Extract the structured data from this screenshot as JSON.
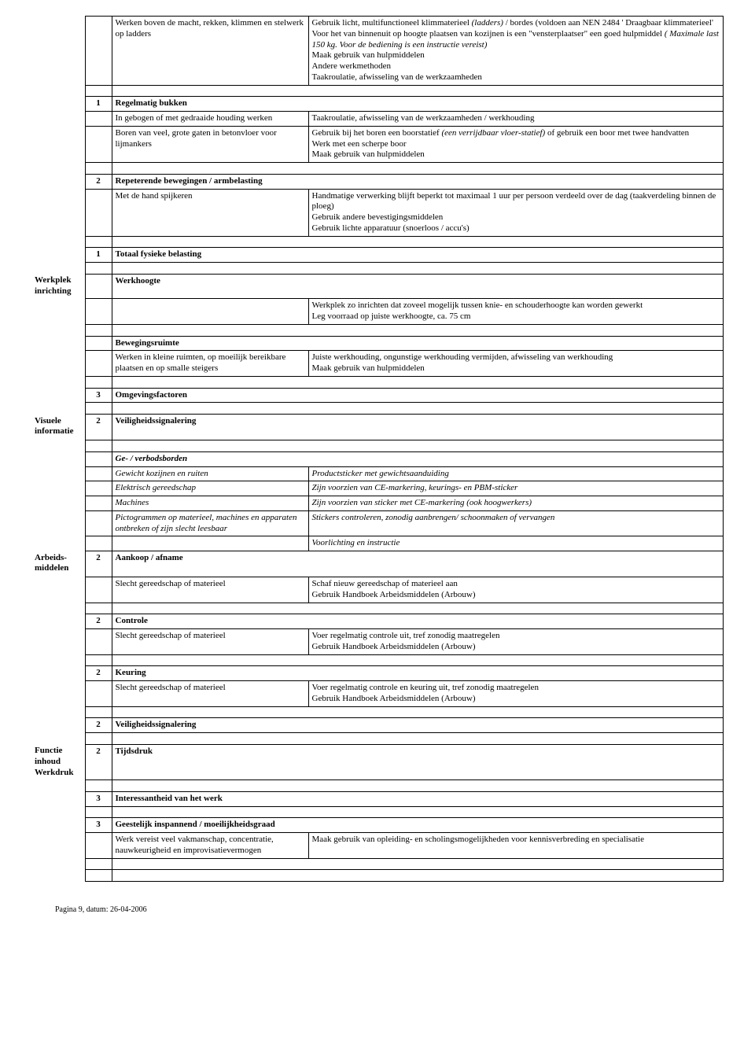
{
  "rows": [
    {
      "cat": "",
      "num": "",
      "left": "Werken boven de macht, rekken, klimmen en stelwerk op ladders",
      "right": "Gebruik licht, multifunctioneel klimmaterieel <i>(ladders)</i> / bordes (voldoen aan NEN 2484 ' Draagbaar klimmaterieel'<br>Voor het van binnenuit op hoogte plaatsen van kozijnen is een \"vensterplaatser\" een goed hulpmiddel <i>( Maximale last 150 kg. Voor de bediening is een instructie vereist)</i><br>Maak gebruik van hulpmiddelen<br>Andere werkmethoden<br>Taakroulatie, afwisseling van de werkzaamheden"
    },
    {
      "spacer": true
    },
    {
      "cat": "",
      "num": "1",
      "left": "<b>Regelmatig bukken</b>",
      "right": "",
      "merge": true
    },
    {
      "cat": "",
      "num": "",
      "left": "In gebogen of met gedraaide houding werken",
      "right": "Taakroulatie, afwisseling van de werkzaamheden / werkhouding"
    },
    {
      "cat": "",
      "num": "",
      "left": "Boren van veel, grote gaten in betonvloer voor lijmankers",
      "right": "Gebruik bij het boren een boorstatief <i>(een verrijdbaar vloer-statief)</i> of gebruik een boor met twee handvatten<br>Werk met een scherpe boor<br>Maak gebruik van hulpmiddelen"
    },
    {
      "spacer": true
    },
    {
      "cat": "",
      "num": "2",
      "left": "<b>Repeterende bewegingen / armbelasting</b>",
      "right": "",
      "merge": true
    },
    {
      "cat": "",
      "num": "",
      "left": "Met de hand spijkeren",
      "right": "Handmatige verwerking blijft beperkt tot maximaal 1 uur per persoon verdeeld over de dag (taakverdeling binnen de ploeg)<br>Gebruik andere bevestigingsmiddelen<br>Gebruik lichte apparatuur (snoerloos / accu's)"
    },
    {
      "spacer": true
    },
    {
      "cat": "",
      "num": "1",
      "left": "<b>Totaal fysieke belasting</b>",
      "right": "",
      "merge": true
    },
    {
      "spacer": true
    },
    {
      "cat": "Werkplek inrichting",
      "num": "",
      "left": "<b>Werkhoogte</b>",
      "right": "",
      "merge": true
    },
    {
      "cat": "",
      "num": "",
      "left": "",
      "right": "Werkplek zo inrichten dat zoveel mogelijk tussen knie- en schouderhoogte kan worden gewerkt<br>Leg voorraad op juiste werkhoogte, ca. 75 cm"
    },
    {
      "spacer": true
    },
    {
      "cat": "",
      "num": "",
      "left": "<b>Bewegingsruimte</b>",
      "right": "",
      "merge": true
    },
    {
      "cat": "",
      "num": "",
      "left": "Werken in kleine ruimten, op moeilijk bereikbare plaatsen en op smalle steigers",
      "right": "Juiste werkhouding, ongunstige werkhouding vermijden, afwisseling van werkhouding<br>Maak gebruik van hulpmiddelen"
    },
    {
      "spacer": true
    },
    {
      "cat": "",
      "num": "3",
      "left": "<b>Omgevingsfactoren</b>",
      "right": "",
      "merge": true
    },
    {
      "spacer": true
    },
    {
      "cat": "Visuele informatie",
      "num": "2",
      "left": "<b>Veiligheidssignalering</b>",
      "right": "",
      "merge": true,
      "tall": true
    },
    {
      "spacer": true
    },
    {
      "cat": "",
      "num": "",
      "left": "<b><i>Ge- / verbodsborden</i></b>",
      "right": "",
      "merge": true
    },
    {
      "cat": "",
      "num": "",
      "left": "<i>Gewicht kozijnen en ruiten</i>",
      "right": "<i>Productsticker met gewichtsaanduiding</i>"
    },
    {
      "cat": "",
      "num": "",
      "left": "<i>Elektrisch gereedschap</i>",
      "right": "<i>Zijn voorzien van CE-markering, keurings- en PBM-sticker</i>"
    },
    {
      "cat": "",
      "num": "",
      "left": "<i>Machines</i>",
      "right": "<i>Zijn voorzien van sticker met CE-markering (ook hoogwerkers)</i>"
    },
    {
      "cat": "",
      "num": "",
      "left": "<i>Pictogrammen op materieel, machines en apparaten ontbreken of zijn slecht leesbaar</i>",
      "right": "<i>Stickers controleren, zonodig aanbrengen/ schoonmaken of vervangen</i>"
    },
    {
      "cat": "",
      "num": "",
      "left": "",
      "right": "<i>Voorlichting en instructie</i>"
    },
    {
      "cat": "Arbeids-middelen",
      "num": "2",
      "left": "<b>Aankoop / afname</b>",
      "right": "",
      "merge": true,
      "tall": true
    },
    {
      "cat": "",
      "num": "",
      "left": "Slecht gereedschap of materieel",
      "right": "Schaf nieuw gereedschap of materieel aan<br>Gebruik Handboek Arbeidsmiddelen (Arbouw)"
    },
    {
      "spacer": true
    },
    {
      "cat": "",
      "num": "2",
      "left": "<b>Controle</b>",
      "right": "",
      "merge": true
    },
    {
      "cat": "",
      "num": "",
      "left": "Slecht gereedschap of materieel",
      "right": "Voer regelmatig controle uit, tref zonodig maatregelen<br>Gebruik Handboek Arbeidsmiddelen (Arbouw)"
    },
    {
      "spacer": true
    },
    {
      "cat": "",
      "num": "2",
      "left": "<b>Keuring</b>",
      "right": "",
      "merge": true
    },
    {
      "cat": "",
      "num": "",
      "left": "Slecht gereedschap of materieel",
      "right": "Voer regelmatig controle en keuring uit, tref zonodig maatregelen<br>Gebruik Handboek Arbeidsmiddelen (Arbouw)"
    },
    {
      "spacer": true
    },
    {
      "cat": "",
      "num": "2",
      "left": "<b>Veiligheidssignalering</b>",
      "right": "",
      "merge": true
    },
    {
      "spacer": true
    },
    {
      "cat": "Functie inhoud Werkdruk",
      "num": "2",
      "left": "<b>Tijdsdruk</b>",
      "right": "",
      "merge": true,
      "tall": true
    },
    {
      "spacer": true
    },
    {
      "cat": "",
      "num": "3",
      "left": "<b>Interessantheid van het werk</b>",
      "right": "",
      "merge": true
    },
    {
      "spacer": true
    },
    {
      "cat": "",
      "num": "3",
      "left": "<b>Geestelijk inspannend / moeilijkheidsgraad</b>",
      "right": "",
      "merge": true
    },
    {
      "cat": "",
      "num": "",
      "left": "Werk vereist veel vakmanschap, concentratie, nauwkeurigheid en improvisatievermogen",
      "right": "Maak gebruik van opleiding- en scholingsmogelijkheden voor kennisverbreding en specialisatie"
    },
    {
      "spacer": true
    },
    {
      "spacer": true
    }
  ],
  "footer": "Pagina 9, datum: 26-04-2006"
}
